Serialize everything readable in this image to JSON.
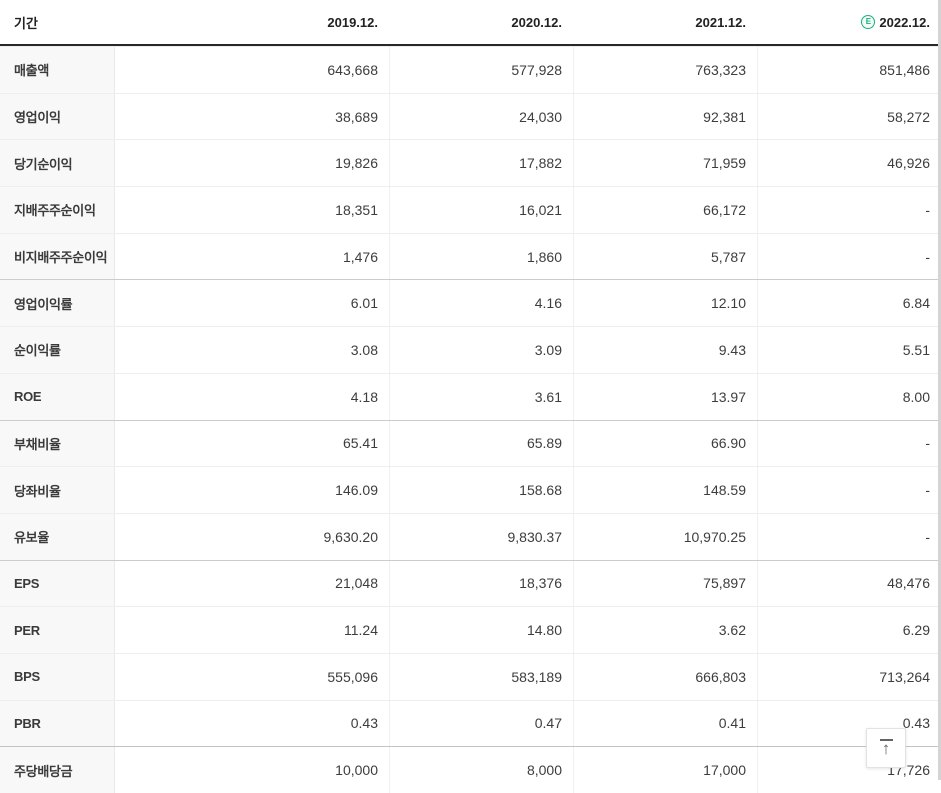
{
  "header": {
    "period_label": "기간",
    "columns": [
      "2019.12.",
      "2020.12.",
      "2021.12.",
      "2022.12."
    ],
    "estimate_badge": "E",
    "estimate_col_index": 3
  },
  "rows": [
    {
      "label": "매출액",
      "values": [
        "643,668",
        "577,928",
        "763,323",
        "851,486"
      ],
      "group_start": false
    },
    {
      "label": "영업이익",
      "values": [
        "38,689",
        "24,030",
        "92,381",
        "58,272"
      ],
      "group_start": false
    },
    {
      "label": "당기순이익",
      "values": [
        "19,826",
        "17,882",
        "71,959",
        "46,926"
      ],
      "group_start": false
    },
    {
      "label": "지배주주순이익",
      "values": [
        "18,351",
        "16,021",
        "66,172",
        "-"
      ],
      "group_start": false
    },
    {
      "label": "비지배주주순이익",
      "values": [
        "1,476",
        "1,860",
        "5,787",
        "-"
      ],
      "group_start": false
    },
    {
      "label": "영업이익률",
      "values": [
        "6.01",
        "4.16",
        "12.10",
        "6.84"
      ],
      "group_start": true
    },
    {
      "label": "순이익률",
      "values": [
        "3.08",
        "3.09",
        "9.43",
        "5.51"
      ],
      "group_start": false
    },
    {
      "label": "ROE",
      "values": [
        "4.18",
        "3.61",
        "13.97",
        "8.00"
      ],
      "group_start": false
    },
    {
      "label": "부채비율",
      "values": [
        "65.41",
        "65.89",
        "66.90",
        "-"
      ],
      "group_start": true
    },
    {
      "label": "당좌비율",
      "values": [
        "146.09",
        "158.68",
        "148.59",
        "-"
      ],
      "group_start": false
    },
    {
      "label": "유보율",
      "values": [
        "9,630.20",
        "9,830.37",
        "10,970.25",
        "-"
      ],
      "group_start": false
    },
    {
      "label": "EPS",
      "values": [
        "21,048",
        "18,376",
        "75,897",
        "48,476"
      ],
      "group_start": true
    },
    {
      "label": "PER",
      "values": [
        "11.24",
        "14.80",
        "3.62",
        "6.29"
      ],
      "group_start": false
    },
    {
      "label": "BPS",
      "values": [
        "555,096",
        "583,189",
        "666,803",
        "713,264"
      ],
      "group_start": false
    },
    {
      "label": "PBR",
      "values": [
        "0.43",
        "0.47",
        "0.41",
        "0.43"
      ],
      "group_start": false
    },
    {
      "label": "주당배당금",
      "values": [
        "10,000",
        "8,000",
        "17,000",
        "17,726"
      ],
      "group_start": true
    }
  ],
  "scroll_top_button": {
    "arrow": "↑"
  },
  "colors": {
    "estimate_green": "#17b27b",
    "header_underline": "#28282c",
    "row_divider": "#eeeeee",
    "group_divider": "#cccccc",
    "label_bg": "#f8f8f8",
    "text": "#3d3d3d"
  }
}
